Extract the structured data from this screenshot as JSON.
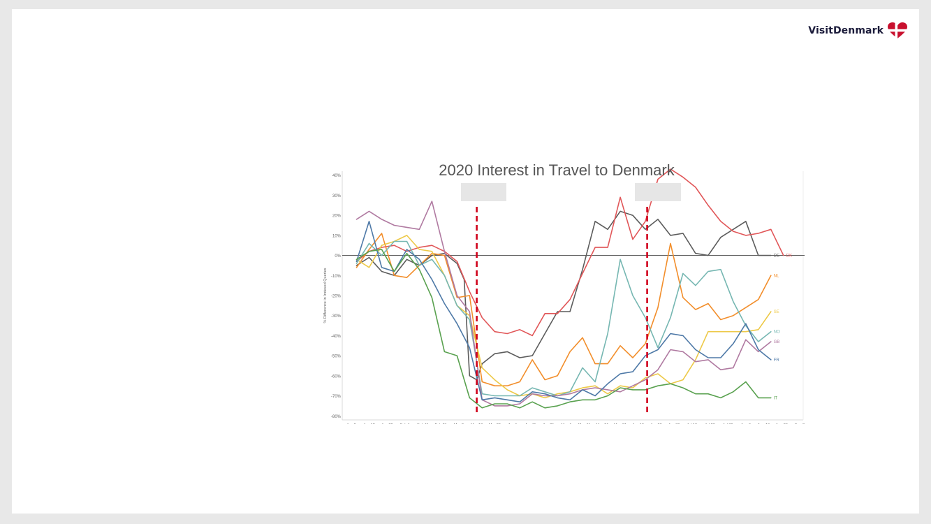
{
  "brand": {
    "name": "VisitDenmark",
    "logo_icon": "heart-flag-icon",
    "logo_color": "#c8102e"
  },
  "chart_data": {
    "type": "line",
    "title": "2020 Interest in Travel to Denmark",
    "ylabel": "% Difference in Indexed Queries",
    "xlabel": "",
    "ylim": [
      -82,
      42
    ],
    "yticks": [
      40,
      30,
      20,
      10,
      0,
      -10,
      -20,
      -30,
      -40,
      -50,
      -60,
      -70,
      -80
    ],
    "ytick_labels": [
      "40%",
      "30%",
      "20%",
      "10%",
      "0%",
      "-10%",
      "-20%",
      "-30%",
      "-40%",
      "-50%",
      "-60%",
      "-70%",
      "-80%"
    ],
    "x_tick_labels": [
      "Jan 2",
      "Jan 12",
      "Jan 22",
      "Feb 1",
      "Feb 11",
      "Feb 21",
      "Mar 2",
      "Mar 12",
      "Mar 22",
      "Apr 1",
      "Apr 11",
      "Apr 21",
      "May 1",
      "May 11",
      "May 21",
      "May 31",
      "Jun 10",
      "Jun 20",
      "Jun 30",
      "Jul 10",
      "Jul 20",
      "Jul 30",
      "Aug 9",
      "Aug 19",
      "Aug 29",
      "Sep 8"
    ],
    "x_range": [
      "2019-12-28",
      "2020-09-10"
    ],
    "grid": false,
    "reference_lines": [
      {
        "x": "2020-03-12",
        "color": "#d0021b",
        "style": "dashed"
      },
      {
        "x": "2020-06-15",
        "color": "#d0021b",
        "style": "dashed"
      }
    ],
    "series": [
      {
        "name": "DE",
        "color": "#5c5c5c",
        "x": [
          "2020-01-05",
          "2020-01-12",
          "2020-01-19",
          "2020-01-26",
          "2020-02-02",
          "2020-02-09",
          "2020-02-16",
          "2020-02-23",
          "2020-03-01",
          "2020-03-05",
          "2020-03-08",
          "2020-03-12",
          "2020-03-15",
          "2020-03-22",
          "2020-03-29",
          "2020-04-05",
          "2020-04-12",
          "2020-04-19",
          "2020-04-26",
          "2020-05-03",
          "2020-05-10",
          "2020-05-17",
          "2020-05-24",
          "2020-05-31",
          "2020-06-07",
          "2020-06-14",
          "2020-06-21",
          "2020-06-28",
          "2020-07-05",
          "2020-07-12",
          "2020-07-19",
          "2020-07-26",
          "2020-08-02",
          "2020-08-09",
          "2020-08-16",
          "2020-08-23"
        ],
        "values": [
          -5,
          -1,
          -8,
          -10,
          -2,
          -5,
          0,
          1,
          -4,
          -12,
          -60,
          -62,
          -54,
          -49,
          -48,
          -51,
          -50,
          -39,
          -28,
          -28,
          -7,
          17,
          13,
          22,
          20,
          13,
          18,
          10,
          11,
          1,
          0,
          9,
          13,
          17,
          0,
          0
        ]
      },
      {
        "name": "DK",
        "color": "#e15759",
        "x": [
          "2020-01-05",
          "2020-01-12",
          "2020-01-19",
          "2020-01-26",
          "2020-02-02",
          "2020-02-09",
          "2020-02-16",
          "2020-02-23",
          "2020-03-01",
          "2020-03-08",
          "2020-03-15",
          "2020-03-22",
          "2020-03-29",
          "2020-04-05",
          "2020-04-12",
          "2020-04-19",
          "2020-04-26",
          "2020-05-03",
          "2020-05-10",
          "2020-05-17",
          "2020-05-24",
          "2020-05-31",
          "2020-06-07",
          "2020-06-14",
          "2020-06-21",
          "2020-06-28",
          "2020-07-05",
          "2020-07-12",
          "2020-07-19",
          "2020-07-26",
          "2020-08-02",
          "2020-08-09",
          "2020-08-16",
          "2020-08-23",
          "2020-08-30"
        ],
        "values": [
          -3,
          2,
          4,
          5,
          2,
          4,
          5,
          2,
          -3,
          -18,
          -31,
          -38,
          -39,
          -37,
          -40,
          -29,
          -29,
          -22,
          -9,
          4,
          4,
          29,
          8,
          17,
          38,
          43,
          39,
          34,
          25,
          17,
          12,
          10,
          11,
          13,
          0
        ]
      },
      {
        "name": "NL",
        "color": "#f28e2b",
        "x": [
          "2020-01-05",
          "2020-01-12",
          "2020-01-19",
          "2020-01-26",
          "2020-02-02",
          "2020-02-09",
          "2020-02-16",
          "2020-02-23",
          "2020-03-01",
          "2020-03-08",
          "2020-03-15",
          "2020-03-22",
          "2020-03-29",
          "2020-04-05",
          "2020-04-12",
          "2020-04-19",
          "2020-04-26",
          "2020-05-03",
          "2020-05-10",
          "2020-05-17",
          "2020-05-24",
          "2020-05-31",
          "2020-06-07",
          "2020-06-14",
          "2020-06-21",
          "2020-06-28",
          "2020-07-05",
          "2020-07-12",
          "2020-07-19",
          "2020-07-26",
          "2020-08-02",
          "2020-08-09",
          "2020-08-16",
          "2020-08-23"
        ],
        "values": [
          -6,
          3,
          11,
          -10,
          -11,
          -5,
          1,
          0,
          -21,
          -20,
          -63,
          -65,
          -65,
          -63,
          -52,
          -62,
          -60,
          -48,
          -41,
          -54,
          -54,
          -45,
          -51,
          -44,
          -26,
          6,
          -21,
          -27,
          -24,
          -32,
          -30,
          -26,
          -22,
          -10
        ]
      },
      {
        "name": "SE",
        "color": "#edc948",
        "x": [
          "2020-01-05",
          "2020-01-12",
          "2020-01-19",
          "2020-01-26",
          "2020-02-02",
          "2020-02-09",
          "2020-02-16",
          "2020-02-23",
          "2020-03-01",
          "2020-03-08",
          "2020-03-15",
          "2020-03-22",
          "2020-03-29",
          "2020-04-05",
          "2020-04-12",
          "2020-04-19",
          "2020-04-26",
          "2020-05-03",
          "2020-05-10",
          "2020-05-17",
          "2020-05-24",
          "2020-05-31",
          "2020-06-07",
          "2020-06-14",
          "2020-06-21",
          "2020-06-28",
          "2020-07-05",
          "2020-07-12",
          "2020-07-19",
          "2020-07-26",
          "2020-08-02",
          "2020-08-09",
          "2020-08-16",
          "2020-08-23"
        ],
        "values": [
          -2,
          -6,
          5,
          7,
          10,
          3,
          2,
          -10,
          -25,
          -30,
          -56,
          -62,
          -67,
          -70,
          -69,
          -71,
          -69,
          -68,
          -66,
          -65,
          -69,
          -65,
          -66,
          -61,
          -59,
          -64,
          -62,
          -52,
          -38,
          -38,
          -38,
          -38,
          -37,
          -28
        ]
      },
      {
        "name": "NO",
        "color": "#76b7b2",
        "x": [
          "2020-01-05",
          "2020-01-12",
          "2020-01-19",
          "2020-01-26",
          "2020-02-02",
          "2020-02-09",
          "2020-02-16",
          "2020-02-23",
          "2020-03-01",
          "2020-03-08",
          "2020-03-15",
          "2020-03-22",
          "2020-03-29",
          "2020-04-05",
          "2020-04-12",
          "2020-04-19",
          "2020-04-26",
          "2020-05-03",
          "2020-05-10",
          "2020-05-17",
          "2020-05-24",
          "2020-05-31",
          "2020-06-07",
          "2020-06-14",
          "2020-06-21",
          "2020-06-28",
          "2020-07-05",
          "2020-07-12",
          "2020-07-19",
          "2020-07-26",
          "2020-08-02",
          "2020-08-09",
          "2020-08-16",
          "2020-08-23"
        ],
        "values": [
          -4,
          6,
          0,
          7,
          7,
          -5,
          -2,
          -10,
          -25,
          -32,
          -69,
          -70,
          -70,
          -70,
          -66,
          -68,
          -70,
          -68,
          -56,
          -63,
          -39,
          -2,
          -20,
          -31,
          -46,
          -31,
          -9,
          -15,
          -8,
          -7,
          -23,
          -35,
          -43,
          -38
        ]
      },
      {
        "name": "GB",
        "color": "#b07aa1",
        "x": [
          "2020-01-05",
          "2020-01-12",
          "2020-01-19",
          "2020-01-26",
          "2020-02-02",
          "2020-02-09",
          "2020-02-16",
          "2020-02-23",
          "2020-03-01",
          "2020-03-08",
          "2020-03-15",
          "2020-03-22",
          "2020-03-29",
          "2020-04-05",
          "2020-04-12",
          "2020-04-19",
          "2020-04-26",
          "2020-05-03",
          "2020-05-10",
          "2020-05-17",
          "2020-05-24",
          "2020-05-31",
          "2020-06-07",
          "2020-06-14",
          "2020-06-21",
          "2020-06-28",
          "2020-07-05",
          "2020-07-12",
          "2020-07-19",
          "2020-07-26",
          "2020-08-02",
          "2020-08-09",
          "2020-08-16",
          "2020-08-23"
        ],
        "values": [
          18,
          22,
          18,
          15,
          14,
          13,
          27,
          2,
          -20,
          -28,
          -72,
          -75,
          -75,
          -74,
          -69,
          -70,
          -70,
          -69,
          -67,
          -66,
          -67,
          -68,
          -65,
          -62,
          -57,
          -47,
          -48,
          -53,
          -52,
          -57,
          -56,
          -42,
          -48,
          -43
        ]
      },
      {
        "name": "FR",
        "color": "#4e79a7",
        "x": [
          "2020-01-05",
          "2020-01-12",
          "2020-01-19",
          "2020-01-26",
          "2020-02-02",
          "2020-02-09",
          "2020-02-16",
          "2020-02-23",
          "2020-03-01",
          "2020-03-08",
          "2020-03-15",
          "2020-03-22",
          "2020-03-29",
          "2020-04-05",
          "2020-04-12",
          "2020-04-19",
          "2020-04-26",
          "2020-05-03",
          "2020-05-10",
          "2020-05-17",
          "2020-05-24",
          "2020-05-31",
          "2020-06-07",
          "2020-06-14",
          "2020-06-21",
          "2020-06-28",
          "2020-07-05",
          "2020-07-12",
          "2020-07-19",
          "2020-07-26",
          "2020-08-02",
          "2020-08-09",
          "2020-08-16",
          "2020-08-23"
        ],
        "values": [
          -3,
          17,
          -6,
          -8,
          3,
          -2,
          -12,
          -24,
          -34,
          -46,
          -72,
          -71,
          -72,
          -73,
          -68,
          -69,
          -71,
          -72,
          -67,
          -70,
          -64,
          -59,
          -58,
          -50,
          -47,
          -39,
          -40,
          -47,
          -51,
          -51,
          -44,
          -34,
          -47,
          -52
        ]
      },
      {
        "name": "IT",
        "color": "#59a14f",
        "x": [
          "2020-01-05",
          "2020-01-12",
          "2020-01-19",
          "2020-01-26",
          "2020-02-02",
          "2020-02-09",
          "2020-02-16",
          "2020-02-23",
          "2020-03-01",
          "2020-03-08",
          "2020-03-15",
          "2020-03-22",
          "2020-03-29",
          "2020-04-05",
          "2020-04-12",
          "2020-04-19",
          "2020-04-26",
          "2020-05-03",
          "2020-05-10",
          "2020-05-17",
          "2020-05-24",
          "2020-05-31",
          "2020-06-07",
          "2020-06-14",
          "2020-06-21",
          "2020-06-28",
          "2020-07-05",
          "2020-07-12",
          "2020-07-19",
          "2020-07-26",
          "2020-08-02",
          "2020-08-09",
          "2020-08-16",
          "2020-08-23"
        ],
        "values": [
          -2,
          2,
          3,
          -8,
          1,
          -7,
          -21,
          -48,
          -50,
          -71,
          -76,
          -74,
          -74,
          -76,
          -73,
          -76,
          -75,
          -73,
          -72,
          -72,
          -70,
          -66,
          -67,
          -67,
          -65,
          -64,
          -66,
          -69,
          -69,
          -71,
          -68,
          -63,
          -71,
          -71
        ]
      }
    ]
  }
}
